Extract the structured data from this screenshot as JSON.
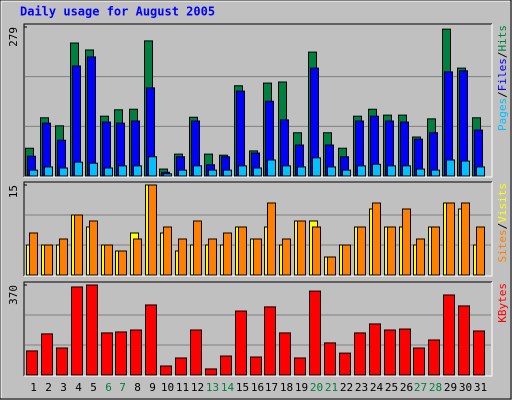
{
  "chart_data": [
    {
      "type": "bar",
      "title": "Daily usage for August 2005",
      "ylim": [
        0,
        279
      ],
      "yticks": [
        279
      ],
      "legend_separator": "/",
      "series": [
        {
          "name": "Hits",
          "color": "#008040",
          "values": [
            52,
            109,
            94,
            249,
            236,
            112,
            124,
            125,
            253,
            13,
            41,
            110,
            41,
            39,
            169,
            47,
            174,
            176,
            81,
            232,
            81,
            52,
            112,
            125,
            114,
            114,
            73,
            107,
            275,
            202,
            109
          ]
        },
        {
          "name": "Files",
          "color": "#0000ff",
          "values": [
            37,
            99,
            67,
            206,
            223,
            101,
            99,
            103,
            165,
            7,
            36,
            103,
            21,
            36,
            159,
            43,
            140,
            105,
            58,
            202,
            58,
            36,
            103,
            112,
            103,
            101,
            69,
            81,
            195,
            197,
            86
          ]
        },
        {
          "name": "Pages",
          "color": "#00c0ff",
          "values": [
            11,
            17,
            15,
            26,
            24,
            15,
            19,
            19,
            36,
            4,
            11,
            19,
            11,
            11,
            19,
            15,
            30,
            19,
            17,
            34,
            17,
            11,
            19,
            22,
            19,
            19,
            13,
            11,
            30,
            28,
            17
          ]
        }
      ]
    },
    {
      "type": "bar",
      "ylim": [
        0,
        15
      ],
      "yticks": [
        15
      ],
      "legend_separator": "/",
      "series": [
        {
          "name": "Visits",
          "color": "#ffff00",
          "values": [
            5,
            5,
            5,
            10,
            8,
            5,
            4,
            7,
            15,
            7,
            4,
            5,
            5,
            5,
            8,
            6,
            8,
            5,
            9,
            9,
            3,
            5,
            8,
            11,
            8,
            8,
            5,
            8,
            12,
            11,
            5
          ]
        },
        {
          "name": "Sites",
          "color": "#ff8000",
          "values": [
            7,
            5,
            6,
            10,
            9,
            5,
            4,
            6,
            15,
            8,
            6,
            9,
            6,
            7,
            8,
            6,
            12,
            6,
            9,
            8,
            3,
            5,
            8,
            12,
            8,
            11,
            6,
            8,
            12,
            12,
            8
          ]
        }
      ]
    },
    {
      "type": "bar",
      "ylim": [
        0,
        370
      ],
      "yticks": [
        370
      ],
      "categories": [
        "1",
        "2",
        "3",
        "4",
        "5",
        "6",
        "7",
        "8",
        "9",
        "10",
        "11",
        "12",
        "13",
        "14",
        "15",
        "16",
        "17",
        "18",
        "19",
        "20",
        "21",
        "22",
        "23",
        "24",
        "25",
        "26",
        "27",
        "28",
        "29",
        "30",
        "31"
      ],
      "category_colors": [
        "#000000",
        "#000000",
        "#000000",
        "#000000",
        "#000000",
        "#008040",
        "#008040",
        "#000000",
        "#000000",
        "#000000",
        "#000000",
        "#000000",
        "#008040",
        "#008040",
        "#000000",
        "#000000",
        "#000000",
        "#000000",
        "#000000",
        "#008040",
        "#008040",
        "#000000",
        "#000000",
        "#000000",
        "#000000",
        "#000000",
        "#008040",
        "#008040",
        "#000000",
        "#000000",
        "#000000"
      ],
      "series": [
        {
          "name": "KBytes",
          "color": "#ff0000",
          "values": [
            99,
            169,
            111,
            362,
            370,
            173,
            177,
            185,
            288,
            37,
            70,
            185,
            25,
            78,
            263,
            74,
            280,
            173,
            70,
            345,
            132,
            90,
            173,
            210,
            185,
            189,
            111,
            144,
            329,
            284,
            181
          ]
        }
      ]
    }
  ]
}
